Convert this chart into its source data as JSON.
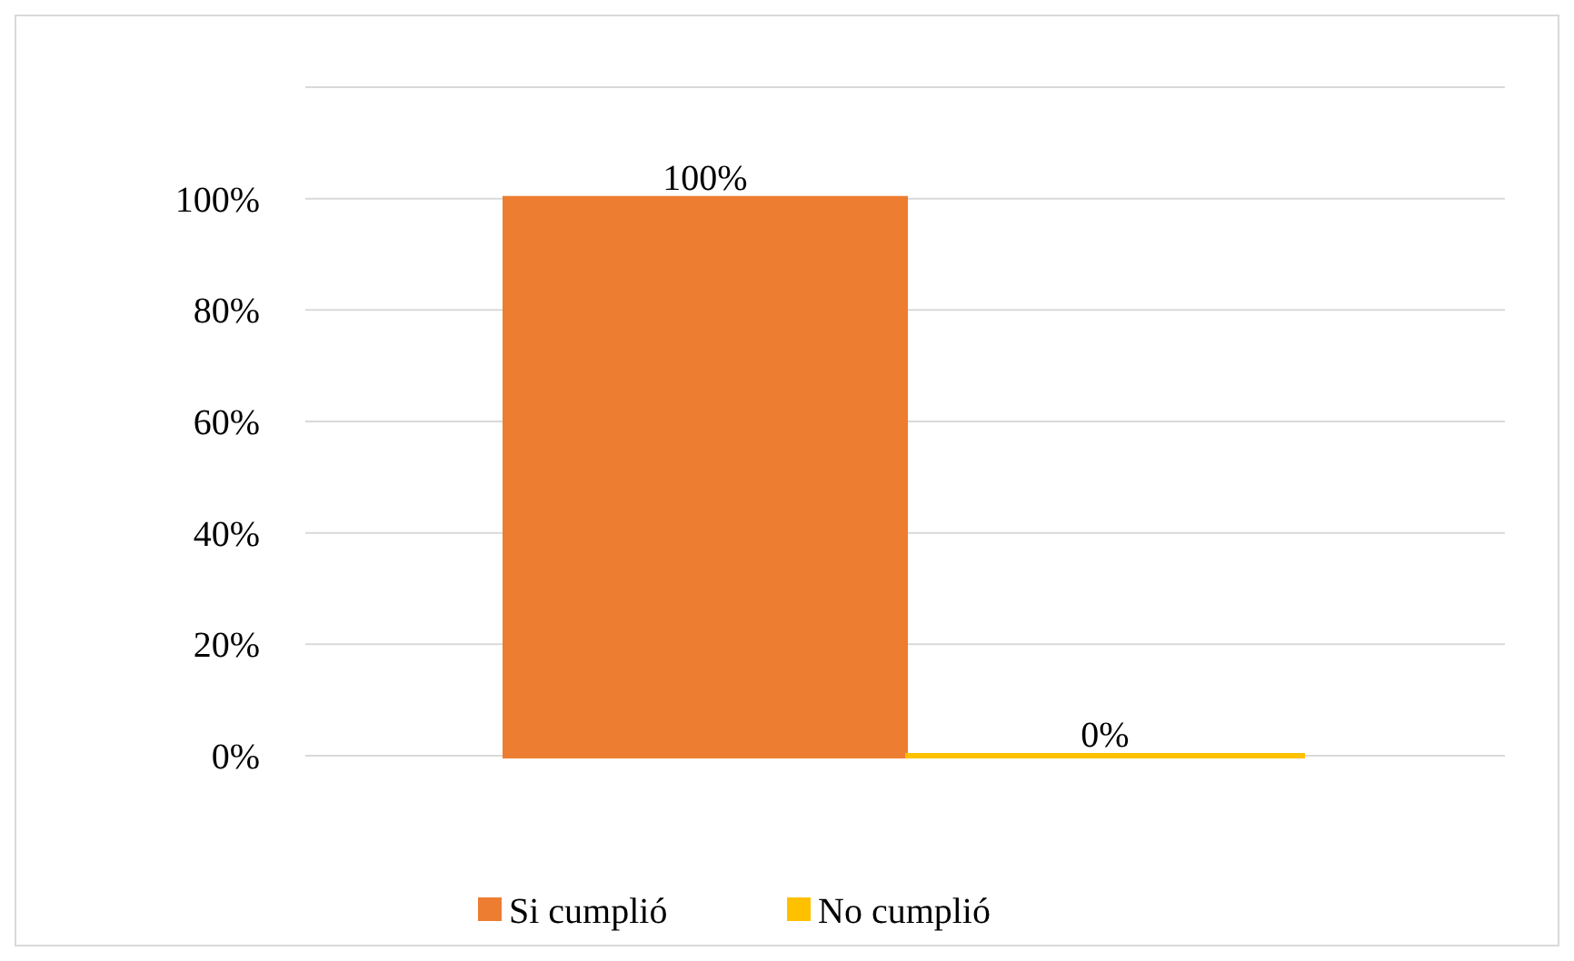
{
  "chart_data": {
    "type": "bar",
    "categories": [
      null
    ],
    "series": [
      {
        "name": "Si cumplió",
        "color": "#ed7d31",
        "values": [
          100
        ],
        "value_labels": [
          "100%"
        ]
      },
      {
        "name": "No cumplió",
        "color": "#ffc000",
        "values": [
          0
        ],
        "value_labels": [
          "0%"
        ]
      }
    ],
    "ylim": [
      0,
      120
    ],
    "yticks": [
      {
        "value": 0,
        "label": "0%"
      },
      {
        "value": 20,
        "label": "20%"
      },
      {
        "value": 40,
        "label": "40%"
      },
      {
        "value": 60,
        "label": "60%"
      },
      {
        "value": 80,
        "label": "80%"
      },
      {
        "value": 100,
        "label": "100%"
      },
      {
        "value": 120,
        "label": null
      }
    ],
    "grid": "y",
    "legend": "bottom"
  }
}
